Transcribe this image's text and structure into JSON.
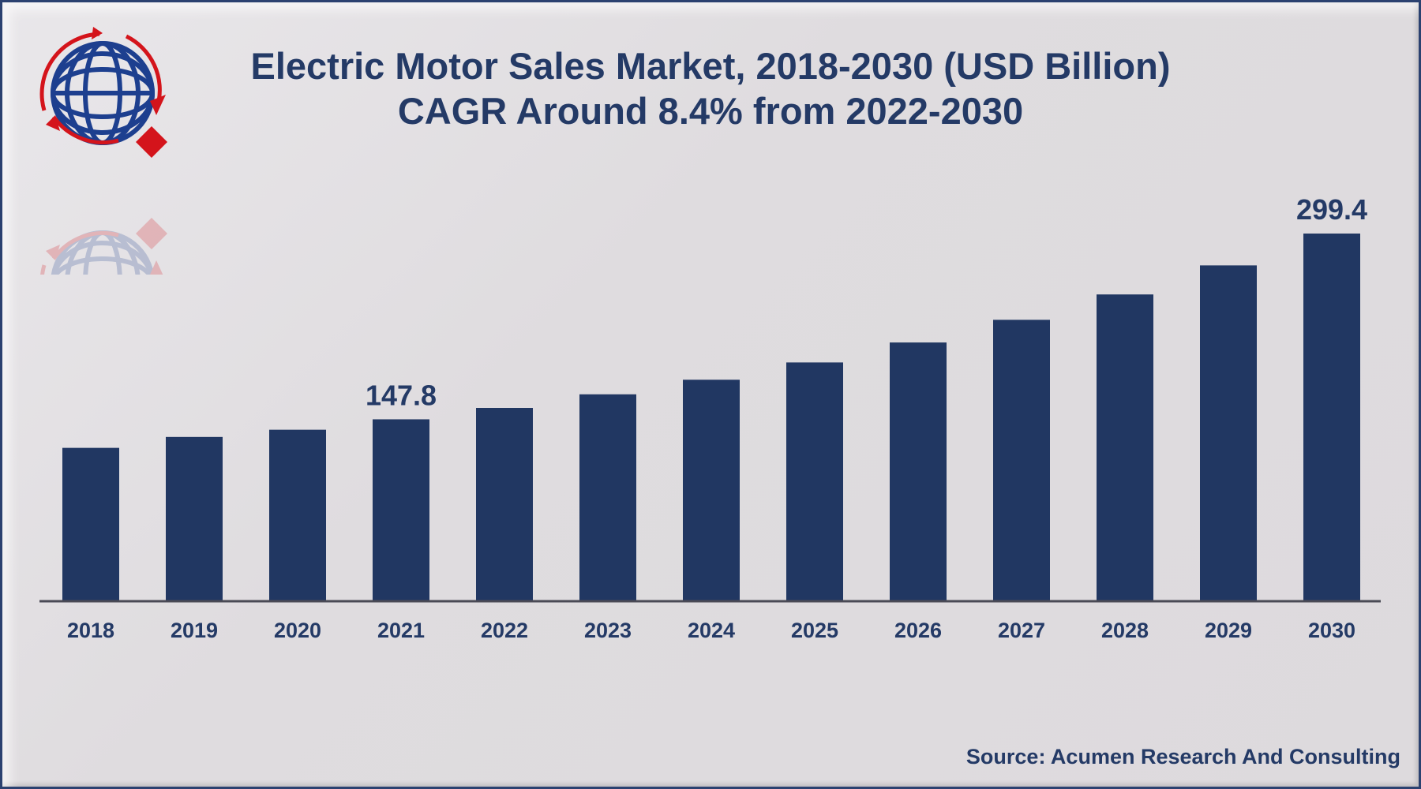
{
  "chart_data": {
    "type": "bar",
    "title": "Electric Motor Sales Market, 2018-2030 (USD Billion)",
    "subtitle": "CAGR Around 8.4% from 2022-2030",
    "categories": [
      "2018",
      "2019",
      "2020",
      "2021",
      "2022",
      "2023",
      "2024",
      "2025",
      "2026",
      "2027",
      "2028",
      "2029",
      "2030"
    ],
    "values": [
      124.5,
      133.4,
      139.3,
      147.8,
      157.1,
      168.2,
      180.1,
      194.2,
      210.5,
      229.0,
      249.7,
      273.4,
      299.4
    ],
    "data_labels": {
      "2021": "147.8",
      "2030": "299.4"
    },
    "xlabel": "",
    "ylabel": "",
    "ylim": [
      0,
      299.4
    ],
    "grid": false,
    "bar_color": "#213762"
  },
  "source": "Source: Acumen Research And Consulting",
  "colors": {
    "text": "#243a66",
    "logo_blue": "#1d3f8f",
    "logo_red": "#d4141b"
  }
}
